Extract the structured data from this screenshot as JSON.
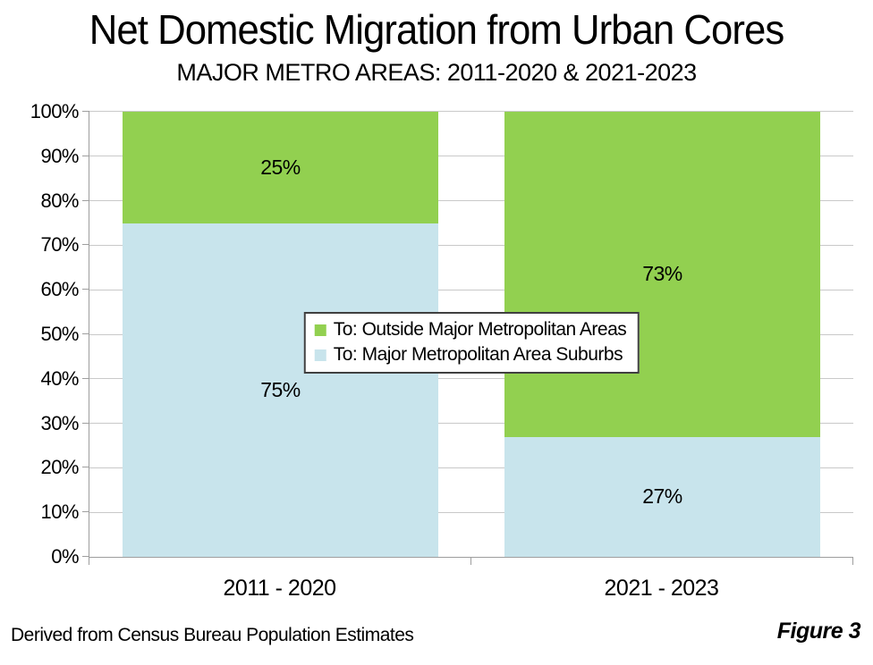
{
  "header": {
    "title": "Net Domestic Migration from Urban Cores",
    "subtitle": "MAJOR METRO AREAS: 2011-2020 & 2021-2023"
  },
  "chart_data": {
    "type": "bar",
    "stacked": true,
    "title": "Net Domestic Migration from Urban Cores",
    "subtitle": "MAJOR METRO AREAS: 2011-2020 & 2021-2023",
    "categories": [
      "2011 - 2020",
      "2021 - 2023"
    ],
    "series": [
      {
        "name": "To: Major Metropolitan Area Suburbs",
        "color": "#C8E4EC",
        "values": [
          75,
          27
        ],
        "labels": [
          "75%",
          "27%"
        ]
      },
      {
        "name": "To: Outside Major Metropolitan Areas",
        "color": "#92D050",
        "values": [
          25,
          73
        ],
        "labels": [
          "25%",
          "73%"
        ]
      }
    ],
    "ylim": [
      0,
      100
    ],
    "ytick_step": 10,
    "ytick_labels": [
      "0%",
      "10%",
      "20%",
      "30%",
      "40%",
      "50%",
      "60%",
      "70%",
      "80%",
      "90%",
      "100%"
    ],
    "grid": true,
    "legend_position": "center"
  },
  "legend": {
    "items": [
      {
        "label": "To: Outside Major Metropolitan Areas",
        "color": "#92D050"
      },
      {
        "label": "To: Major Metropolitan Area Suburbs",
        "color": "#C8E4EC"
      }
    ]
  },
  "footer": {
    "source": "Derived from Census Bureau Population Estimates",
    "figure": "Figure 3"
  },
  "colors": {
    "green": "#92D050",
    "light_blue": "#C8E4EC",
    "axis": "#9E9E9E",
    "gridline": "#C9C9C9",
    "legend_border": "#404040",
    "text": "#000000"
  }
}
